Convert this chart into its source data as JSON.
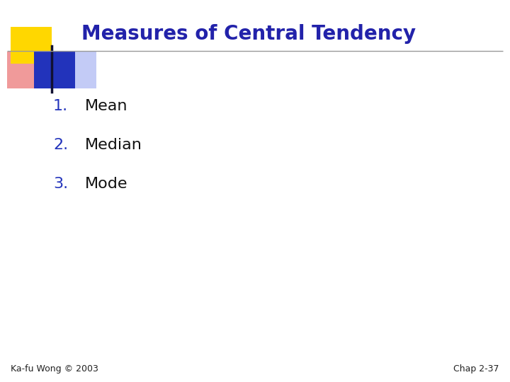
{
  "title": "Measures of Central Tendency",
  "title_color": "#2222AA",
  "title_fontsize": 20,
  "title_bold": true,
  "items": [
    "Mean",
    "Median",
    "Mode"
  ],
  "item_numbers": [
    "1.",
    "2.",
    "3."
  ],
  "item_number_color": "#2233BB",
  "item_text_color": "#111111",
  "item_fontsize": 16,
  "footer_left": "Ka-fu Wong © 2003",
  "footer_right": "Chap 2-37",
  "footer_fontsize": 9,
  "footer_color": "#222222",
  "background_color": "#ffffff",
  "line_color": "#999999",
  "logo_yellow": "#FFD700",
  "logo_blue": "#2233BB",
  "logo_blue_light": "#8899EE",
  "logo_red": "#EE8888",
  "logo_dark": "#111133"
}
